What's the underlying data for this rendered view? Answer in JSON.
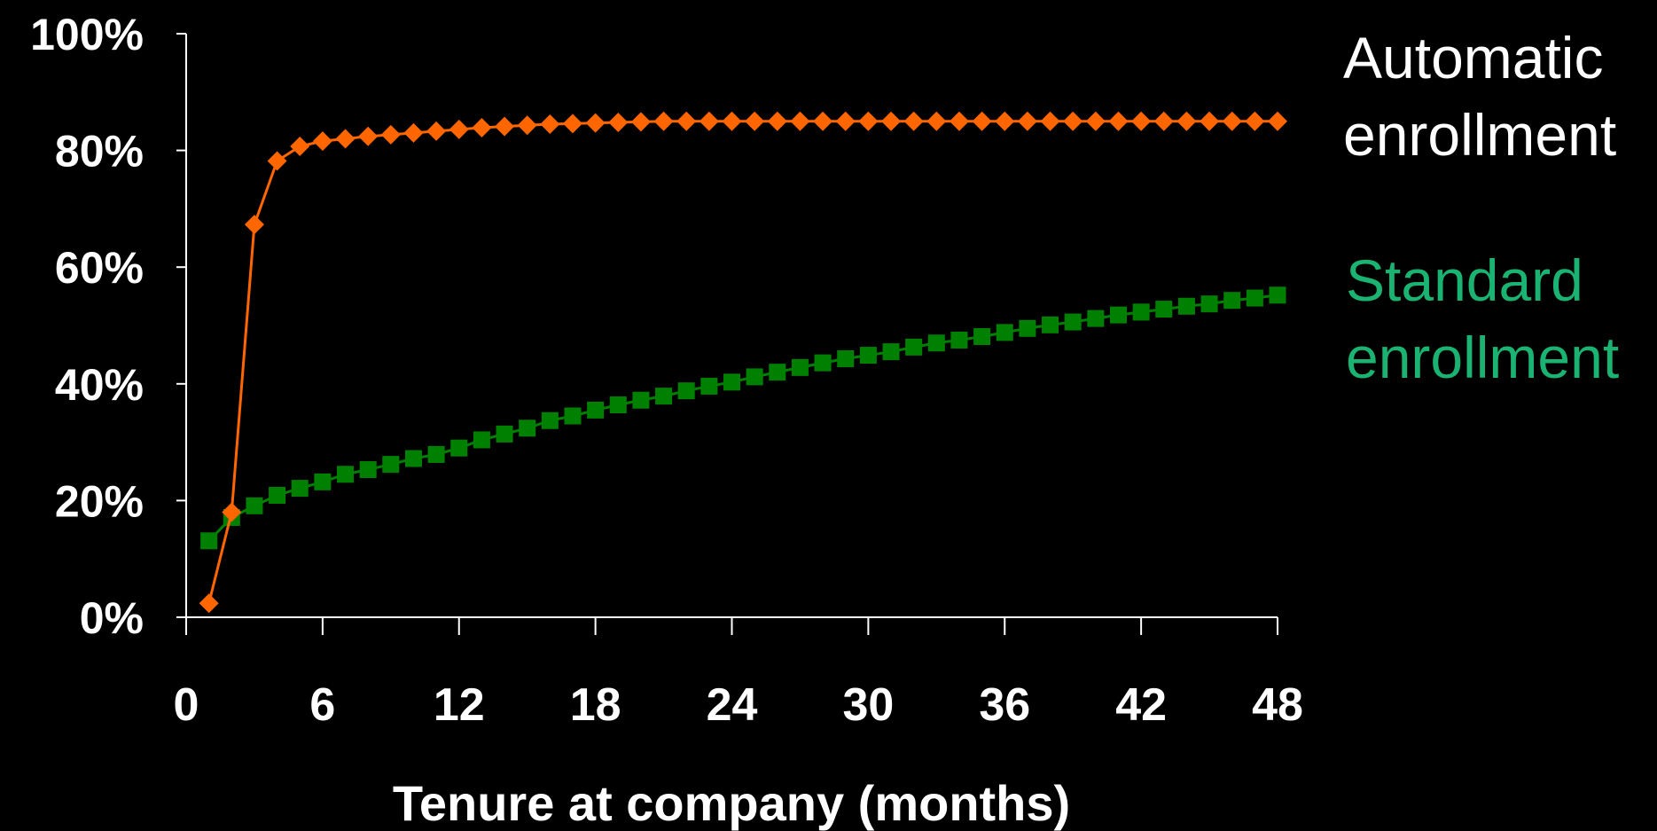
{
  "chart_data": {
    "type": "line",
    "xlabel": "Tenure at company (months)",
    "ylabel": "",
    "xlim": [
      0,
      48
    ],
    "ylim": [
      0,
      100
    ],
    "x_ticks": [
      "0",
      "6",
      "12",
      "18",
      "24",
      "30",
      "36",
      "42",
      "48"
    ],
    "y_ticks": [
      "0%",
      "20%",
      "40%",
      "60%",
      "80%",
      "100%"
    ],
    "grid": false,
    "x": [
      1,
      2,
      3,
      4,
      5,
      6,
      7,
      8,
      9,
      10,
      11,
      12,
      13,
      14,
      15,
      16,
      17,
      18,
      19,
      20,
      21,
      22,
      23,
      24,
      25,
      26,
      27,
      28,
      29,
      30,
      31,
      32,
      33,
      34,
      35,
      36,
      37,
      38,
      39,
      40,
      41,
      42,
      43,
      44,
      45,
      46,
      47,
      48
    ],
    "series": [
      {
        "name_lines": [
          "Automatic",
          "enrollment"
        ],
        "color": "#ff6600",
        "label_color": "#ffffff",
        "marker": "diamond",
        "values": [
          2.4,
          18,
          67.3,
          78.2,
          80.7,
          81.6,
          82.0,
          82.4,
          82.7,
          83.0,
          83.3,
          83.6,
          83.9,
          84.1,
          84.3,
          84.5,
          84.6,
          84.7,
          84.8,
          84.9,
          85.0,
          85.0,
          85.0,
          85.0,
          85.0,
          85.0,
          85.0,
          85.0,
          85.0,
          85.0,
          85.0,
          85.0,
          85.0,
          85.0,
          85.0,
          85.0,
          85.0,
          85.0,
          85.0,
          85.0,
          85.0,
          85.0,
          85.0,
          85.0,
          85.0,
          85.0,
          85.0,
          85.0
        ]
      },
      {
        "name_lines": [
          "Standard",
          "enrollment"
        ],
        "color": "#008000",
        "label_color": "#1ab371",
        "marker": "square",
        "values": [
          13.1,
          17.1,
          19.1,
          20.9,
          22.1,
          23.2,
          24.5,
          25.3,
          26.2,
          27.2,
          27.9,
          29.0,
          30.4,
          31.4,
          32.4,
          33.7,
          34.5,
          35.5,
          36.4,
          37.2,
          37.9,
          38.8,
          39.6,
          40.3,
          41.2,
          42.0,
          42.8,
          43.6,
          44.3,
          44.9,
          45.5,
          46.3,
          47.0,
          47.5,
          48.1,
          48.8,
          49.5,
          50.1,
          50.6,
          51.2,
          51.8,
          52.3,
          52.8,
          53.3,
          53.7,
          54.3,
          54.7,
          55.2
        ]
      }
    ]
  }
}
